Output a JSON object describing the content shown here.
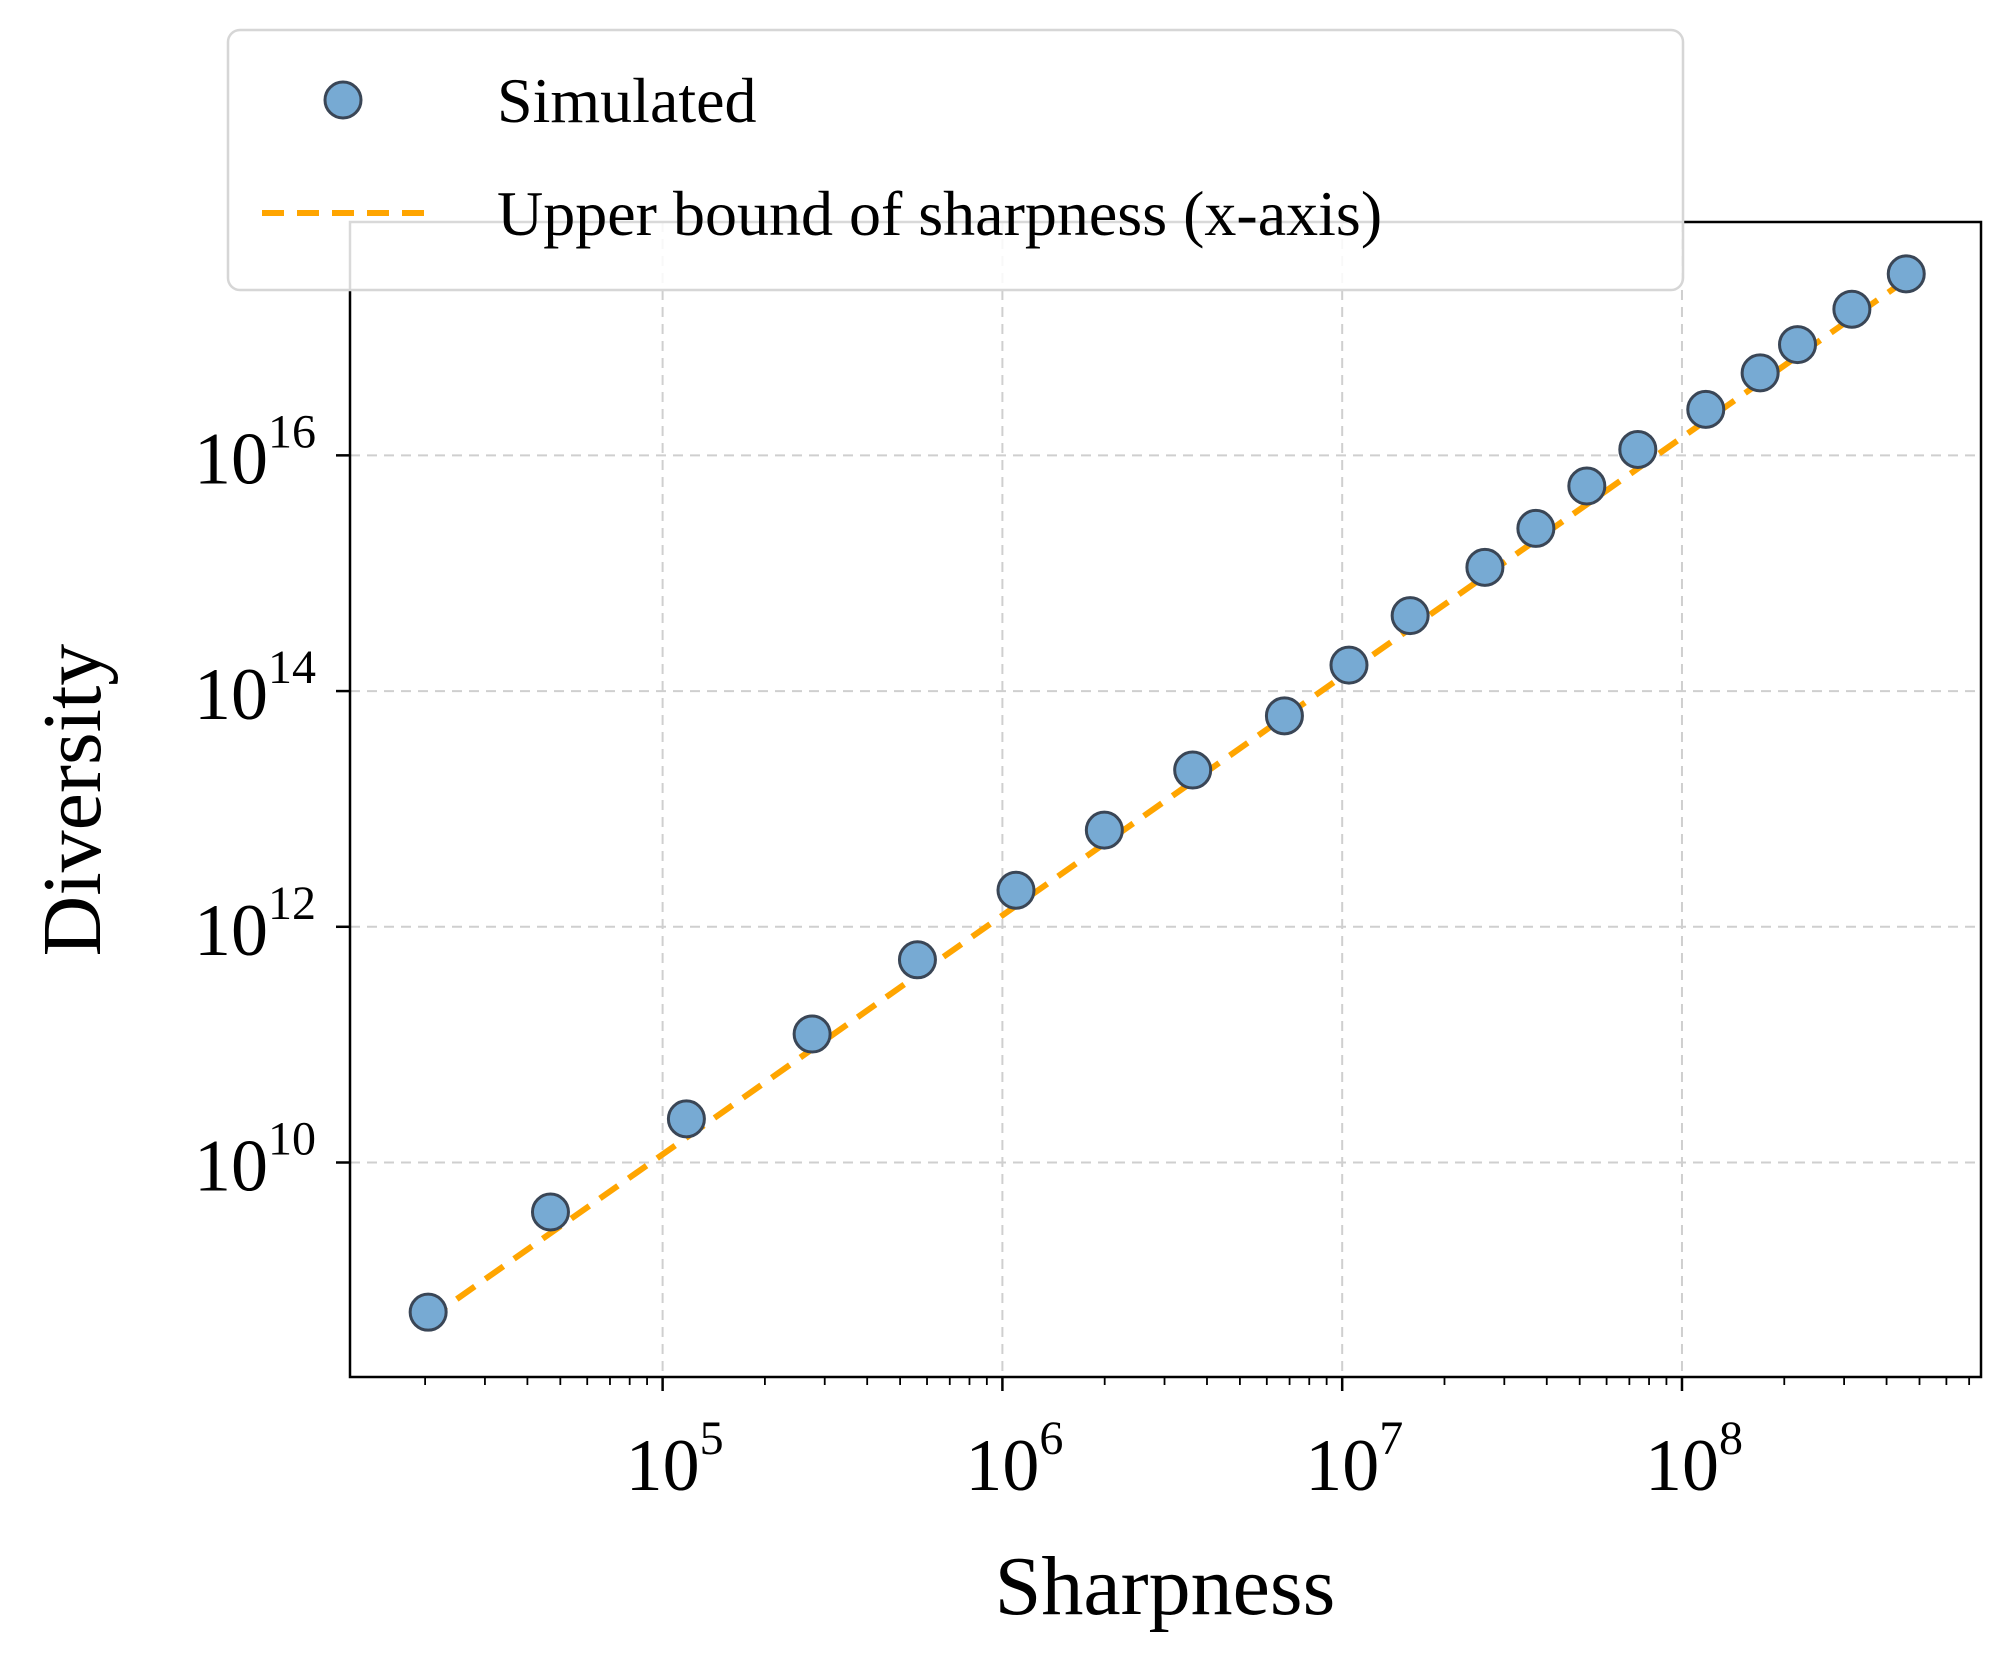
{
  "chart_data": {
    "type": "scatter",
    "title": "",
    "xlabel": "Sharpness",
    "ylabel": "Diversity",
    "xscale": "log",
    "yscale": "log",
    "xlim_log10": [
      4.08,
      8.88
    ],
    "ylim_log10": [
      8.18,
      17.98
    ],
    "grid": true,
    "legend_position": "top-left, above plot",
    "x_ticks": [
      {
        "base": "10",
        "exp": "5",
        "log10": 5
      },
      {
        "base": "10",
        "exp": "6",
        "log10": 6
      },
      {
        "base": "10",
        "exp": "7",
        "log10": 7
      },
      {
        "base": "10",
        "exp": "8",
        "log10": 8
      }
    ],
    "y_ticks": [
      {
        "base": "10",
        "exp": "10",
        "log10": 10
      },
      {
        "base": "10",
        "exp": "12",
        "log10": 12
      },
      {
        "base": "10",
        "exp": "14",
        "log10": 14
      },
      {
        "base": "10",
        "exp": "16",
        "log10": 16
      }
    ],
    "series": [
      {
        "name": "Simulated",
        "kind": "scatter",
        "color": "#77aad3",
        "edge_color": "#3a4656",
        "points_log10": [
          [
            4.31,
            8.73
          ],
          [
            4.67,
            9.58
          ],
          [
            5.07,
            10.37
          ],
          [
            5.44,
            11.09
          ],
          [
            5.75,
            11.72
          ],
          [
            6.04,
            12.31
          ],
          [
            6.3,
            12.82
          ],
          [
            6.56,
            13.33
          ],
          [
            6.83,
            13.79
          ],
          [
            7.02,
            14.22
          ],
          [
            7.2,
            14.64
          ],
          [
            7.42,
            15.05
          ],
          [
            7.57,
            15.38
          ],
          [
            7.72,
            15.74
          ],
          [
            7.87,
            16.05
          ],
          [
            8.07,
            16.39
          ],
          [
            8.23,
            16.7
          ],
          [
            8.34,
            16.94
          ],
          [
            8.5,
            17.24
          ],
          [
            8.66,
            17.54
          ]
        ]
      },
      {
        "name": "Upper bound of sharpness (x-axis)",
        "kind": "line",
        "style": "dashed",
        "color": "#ffa500",
        "points_log10": [
          [
            4.31,
            8.67
          ],
          [
            8.66,
            17.49
          ]
        ]
      }
    ]
  }
}
